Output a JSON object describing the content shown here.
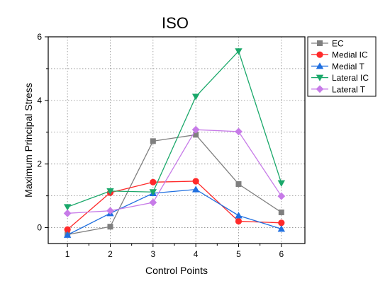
{
  "chart_data": {
    "type": "line",
    "title": "ISO",
    "xlabel": "Control Points",
    "ylabel": "Maximum Principal Stress",
    "x": [
      1,
      2,
      3,
      4,
      5,
      6
    ],
    "xlim": [
      0.55,
      6.55
    ],
    "ylim": [
      -0.5,
      6
    ],
    "xticks": [
      "1",
      "2",
      "3",
      "4",
      "5",
      "6"
    ],
    "yticks": [
      "0",
      "2",
      "4",
      "6"
    ],
    "grid": true,
    "legend_position": "top-right",
    "series": [
      {
        "name": "EC",
        "color": "#7f7f7f",
        "marker": "square",
        "values": [
          -0.22,
          0.03,
          2.72,
          2.92,
          1.37,
          0.48
        ]
      },
      {
        "name": "Medial IC",
        "color": "#ff2a2a",
        "marker": "circle",
        "values": [
          -0.06,
          1.1,
          1.43,
          1.46,
          0.2,
          0.15
        ]
      },
      {
        "name": "Medial T",
        "color": "#1f6fe0",
        "marker": "triangle-up",
        "values": [
          -0.23,
          0.45,
          1.08,
          1.2,
          0.38,
          -0.04
        ]
      },
      {
        "name": "Lateral IC",
        "color": "#1aa86a",
        "marker": "triangle-down",
        "values": [
          0.65,
          1.15,
          1.12,
          4.12,
          5.55,
          1.4
        ]
      },
      {
        "name": "Lateral T",
        "color": "#c77be8",
        "marker": "diamond",
        "values": [
          0.45,
          0.53,
          0.79,
          3.08,
          3.02,
          0.99
        ]
      }
    ]
  }
}
